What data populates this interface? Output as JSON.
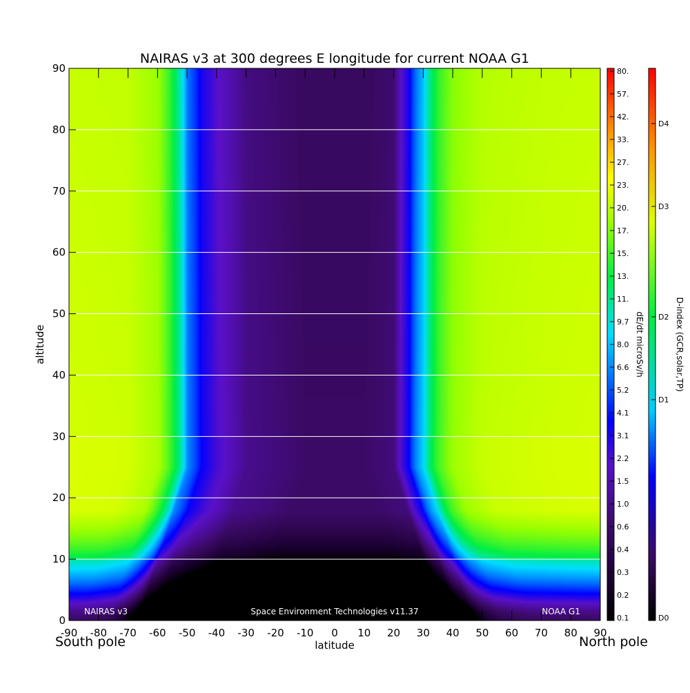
{
  "chart_data": {
    "type": "heatmap",
    "title": "NAIRAS v3 at 300 degrees E longitude for current NOAA G1",
    "xlabel": "latitude",
    "ylabel": "altitude",
    "x_min_label": "South pole",
    "x_max_label": "North pole",
    "xlim": [
      -90,
      90
    ],
    "ylim": [
      0,
      90
    ],
    "x_ticks": [
      -90,
      -80,
      -70,
      -60,
      -50,
      -40,
      -30,
      -20,
      -10,
      0,
      10,
      20,
      30,
      40,
      50,
      60,
      70,
      80,
      90
    ],
    "y_ticks": [
      0,
      10,
      20,
      30,
      40,
      50,
      60,
      70,
      80,
      90
    ],
    "y_gridlines": [
      10,
      20,
      30,
      40,
      50,
      60,
      70,
      80
    ],
    "footer_left": "NAIRAS v3",
    "footer_center": "Space Environment Technologies v11.37",
    "footer_right": "NOAA G1",
    "colorbar_dose": {
      "label": "dE/dt microSv/h",
      "ticks": [
        "0.1",
        "0.2",
        "0.3",
        "0.4",
        "0.6",
        "1.0",
        "1.5",
        "2.2",
        "3.1",
        "4.1",
        "5.2",
        "6.6",
        "8.0",
        "9.7",
        "11.",
        "13.",
        "15.",
        "17.",
        "20.",
        "23.",
        "27.",
        "33.",
        "42.",
        "57.",
        "80."
      ]
    },
    "colorbar_dindex": {
      "label": "D-index (GCR,solar,TP)",
      "ticks": [
        "D0",
        "D1",
        "D2",
        "D3",
        "D4"
      ]
    },
    "value_range_microSv_h": [
      0.1,
      17
    ],
    "description_profile": {
      "latitudes": [
        -90,
        -70,
        -60,
        -55,
        -50,
        -45,
        -40,
        -30,
        -10,
        0,
        10,
        20,
        25,
        30,
        35,
        40,
        50,
        70,
        90
      ],
      "high_altitude_dose": [
        16.5,
        16.0,
        13.0,
        7.0,
        2.0,
        1.0,
        0.7,
        0.4,
        0.3,
        0.3,
        0.3,
        0.35,
        1.0,
        3.0,
        8.0,
        12.0,
        15.0,
        16.0,
        16.5
      ]
    }
  }
}
